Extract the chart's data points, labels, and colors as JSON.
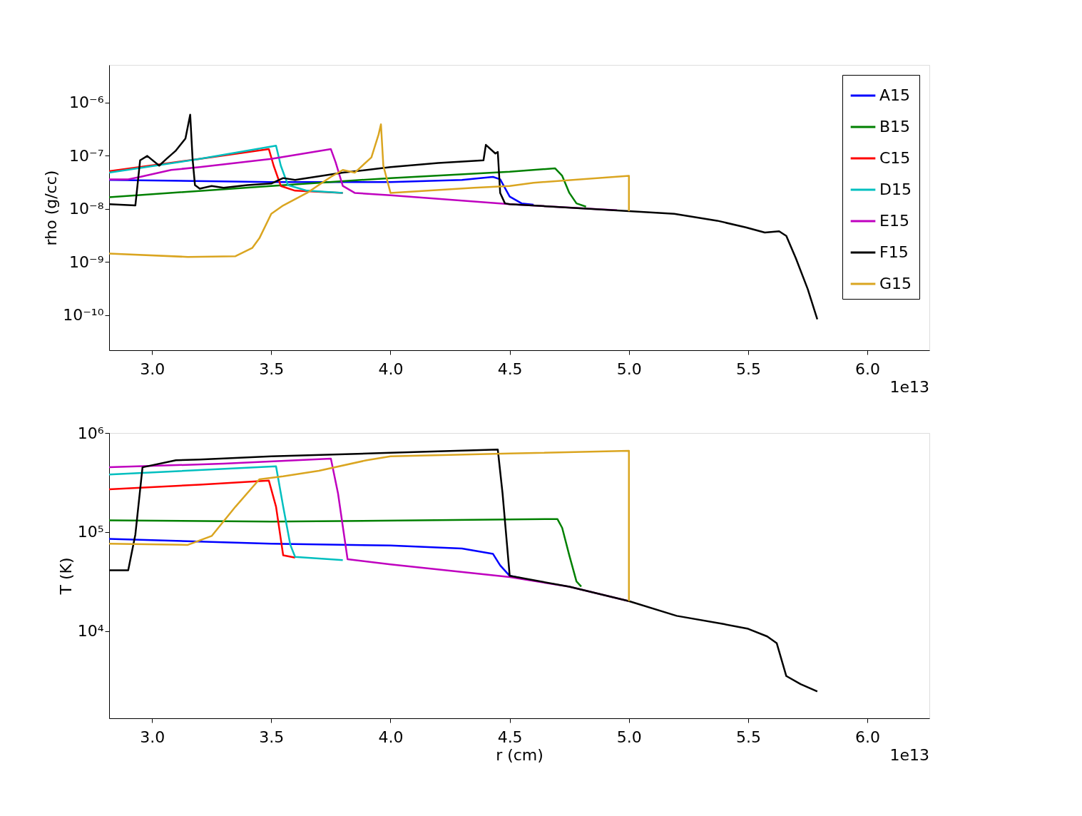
{
  "chart_data": [
    {
      "type": "line",
      "ylabel": "rho (g/cc)",
      "annotations": [
        "1e13"
      ],
      "log": "y",
      "legend": "top right",
      "grid": false,
      "xlim": [
        2.82,
        6.26
      ],
      "xticks": [
        {
          "value": 3,
          "label": "3.0"
        },
        {
          "value": 3.5,
          "label": "3.5"
        },
        {
          "value": 4,
          "label": "4.0"
        },
        {
          "value": 4.5,
          "label": "4.5"
        },
        {
          "value": 5,
          "label": "5.0"
        },
        {
          "value": 5.5,
          "label": "5.5"
        },
        {
          "value": 6,
          "label": "6.0"
        }
      ],
      "ylim": [
        2.2e-11,
        5.1e-06
      ],
      "yticks": [
        {
          "value": 1e-06,
          "label": "10⁻⁶"
        },
        {
          "value": 1e-07,
          "label": "10⁻⁷"
        },
        {
          "value": 1e-08,
          "label": "10⁻⁸"
        },
        {
          "value": 1e-09,
          "label": "10⁻⁹"
        },
        {
          "value": 1e-10,
          "label": "10⁻¹⁰"
        }
      ],
      "series": [
        {
          "name": "A15",
          "color": "#0000ff",
          "x": [
            2.82,
            3.5,
            4.0,
            4.3,
            4.43,
            4.46,
            4.5,
            4.55,
            4.6
          ],
          "values": [
            3.5e-08,
            3.2e-08,
            3.2e-08,
            3.5e-08,
            4e-08,
            3.6e-08,
            1.7e-08,
            1.27e-08,
            1.2e-08
          ]
        },
        {
          "name": "B15",
          "color": "#008000",
          "x": [
            2.82,
            3.5,
            4.0,
            4.5,
            4.69,
            4.72,
            4.75,
            4.78,
            4.82
          ],
          "values": [
            1.66e-08,
            2.7e-08,
            3.8e-08,
            5e-08,
            5.8e-08,
            4.2e-08,
            2e-08,
            1.27e-08,
            1.1e-08
          ]
        },
        {
          "name": "C15",
          "color": "#ff0000",
          "x": [
            2.82,
            3.2,
            3.49,
            3.51,
            3.54,
            3.6,
            3.8
          ],
          "values": [
            5.1e-08,
            8.7e-08,
            1.33e-07,
            6.5e-08,
            2.7e-08,
            2.2e-08,
            2e-08
          ]
        },
        {
          "name": "D15",
          "color": "#00bfbf",
          "x": [
            2.82,
            3.2,
            3.52,
            3.54,
            3.57,
            3.65,
            3.8
          ],
          "values": [
            4.8e-08,
            8.7e-08,
            1.54e-07,
            6.5e-08,
            2.8e-08,
            2.2e-08,
            2e-08
          ]
        },
        {
          "name": "E15",
          "color": "#bf00bf",
          "x": [
            2.82,
            2.9,
            2.95,
            3.0,
            3.08,
            3.2,
            3.5,
            3.75,
            3.77,
            3.8,
            3.85,
            4.0,
            4.5,
            4.95
          ],
          "values": [
            3.6e-08,
            3.6e-08,
            4e-08,
            4.5e-08,
            5.4e-08,
            6.1e-08,
            8.7e-08,
            1.33e-07,
            7.5e-08,
            2.7e-08,
            2e-08,
            1.8e-08,
            1.23e-08,
            9.4e-09
          ]
        },
        {
          "name": "F15",
          "color": "#000000",
          "x": [
            2.82,
            2.93,
            2.95,
            2.98,
            3.03,
            3.06,
            3.1,
            3.14,
            3.16,
            3.17,
            3.18,
            3.2,
            3.25,
            3.3,
            3.4,
            3.5,
            3.55,
            3.6,
            3.8,
            4.0,
            4.2,
            4.39,
            4.4,
            4.44,
            4.45,
            4.46,
            4.48,
            4.5,
            5.0,
            5.19,
            5.37,
            5.49,
            5.57,
            5.63,
            5.66,
            5.7,
            5.75,
            5.79
          ],
          "values": [
            1.23e-08,
            1.16e-08,
            8.2e-08,
            9.9e-08,
            6.5e-08,
            8.7e-08,
            1.25e-07,
            2.1e-07,
            5.9e-07,
            8.7e-08,
            2.8e-08,
            2.4e-08,
            2.7e-08,
            2.5e-08,
            2.8e-08,
            3e-08,
            3.8e-08,
            3.5e-08,
            4.8e-08,
            6.1e-08,
            7.3e-08,
            8.2e-08,
            1.6e-07,
            1.1e-07,
            1.18e-07,
            2e-08,
            1.27e-08,
            1.23e-08,
            9.1e-09,
            8.1e-09,
            6e-09,
            4.5e-09,
            3.6e-09,
            3.8e-09,
            3.1e-09,
            1.18e-09,
            3.1e-10,
            8.4e-11
          ]
        },
        {
          "name": "G15",
          "color": "#daa520",
          "x": [
            2.82,
            3.15,
            3.35,
            3.42,
            3.45,
            3.5,
            3.55,
            3.65,
            3.75,
            3.8,
            3.85,
            3.92,
            3.95,
            3.96,
            3.97,
            4.0,
            4.35,
            4.5,
            4.6,
            5.0,
            5.0
          ],
          "values": [
            1.45e-09,
            1.25e-09,
            1.29e-09,
            1.84e-09,
            2.8e-09,
            8.1e-09,
            1.16e-08,
            2e-08,
            4e-08,
            5.4e-08,
            4.8e-08,
            9.3e-08,
            2.5e-07,
            3.9e-07,
            6.5e-08,
            2e-08,
            2.5e-08,
            2.7e-08,
            3.1e-08,
            4.2e-08,
            9.1e-09
          ]
        }
      ]
    },
    {
      "type": "line",
      "xlabel": "r (cm)",
      "ylabel": "T (K)",
      "annotations": [
        "1e13"
      ],
      "log": "y",
      "legend": "top right",
      "grid": false,
      "xlim": [
        2.82,
        6.26
      ],
      "xticks": [
        {
          "value": 3,
          "label": "3.0"
        },
        {
          "value": 3.5,
          "label": "3.5"
        },
        {
          "value": 4,
          "label": "4.0"
        },
        {
          "value": 4.5,
          "label": "4.5"
        },
        {
          "value": 5,
          "label": "5.0"
        },
        {
          "value": 5.5,
          "label": "5.5"
        },
        {
          "value": 6,
          "label": "6.0"
        }
      ],
      "ylim": [
        1310,
        1000000
      ],
      "yticks": [
        {
          "value": 10000,
          "label": "10⁴"
        },
        {
          "value": 100000,
          "label": "10⁵"
        },
        {
          "value": 1000000,
          "label": "10⁶"
        }
      ],
      "series": [
        {
          "name": "A15",
          "color": "#0000ff",
          "x": [
            2.82,
            3.5,
            4.0,
            4.3,
            4.43,
            4.46,
            4.5,
            4.55
          ],
          "values": [
            85000,
            76000,
            73000,
            68000,
            60000,
            46000,
            36000,
            34000
          ]
        },
        {
          "name": "B15",
          "color": "#008000",
          "x": [
            2.82,
            3.5,
            4.7,
            4.72,
            4.75,
            4.78,
            4.8
          ],
          "values": [
            131000,
            127000,
            135000,
            110000,
            58000,
            31600,
            28000
          ]
        },
        {
          "name": "C15",
          "color": "#ff0000",
          "x": [
            2.82,
            3.2,
            3.49,
            3.52,
            3.55,
            3.6
          ],
          "values": [
            270000,
            300000,
            330000,
            180000,
            58000,
            55000
          ]
        },
        {
          "name": "D15",
          "color": "#00bfbf",
          "x": [
            2.82,
            3.52,
            3.55,
            3.58,
            3.6,
            3.8
          ],
          "values": [
            380000,
            460000,
            180000,
            74000,
            56000,
            52000
          ]
        },
        {
          "name": "E15",
          "color": "#bf00bf",
          "x": [
            2.82,
            3.3,
            3.75,
            3.78,
            3.82,
            4.0,
            4.5,
            4.75,
            5.0
          ],
          "values": [
            450000,
            490000,
            550000,
            245000,
            53000,
            47000,
            35000,
            28000,
            20000
          ]
        },
        {
          "name": "F15",
          "color": "#000000",
          "x": [
            2.82,
            2.9,
            2.93,
            2.96,
            3.1,
            3.2,
            3.5,
            4.0,
            4.45,
            4.47,
            4.5,
            4.75,
            5.0,
            5.2,
            5.4,
            5.5,
            5.58,
            5.62,
            5.66,
            5.72,
            5.79
          ],
          "values": [
            41000,
            41000,
            94000,
            450000,
            530000,
            540000,
            580000,
            630000,
            680000,
            245000,
            36000,
            28000,
            20000,
            14200,
            11700,
            10500,
            8800,
            7500,
            3500,
            2900,
            2450
          ]
        },
        {
          "name": "G15",
          "color": "#daa520",
          "x": [
            2.82,
            3.15,
            3.25,
            3.35,
            3.45,
            3.55,
            3.7,
            3.9,
            4.0,
            4.5,
            5.0,
            5.0
          ],
          "values": [
            76000,
            74000,
            91000,
            180000,
            340000,
            365000,
            415000,
            530000,
            580000,
            620000,
            660000,
            20000
          ]
        }
      ]
    }
  ]
}
